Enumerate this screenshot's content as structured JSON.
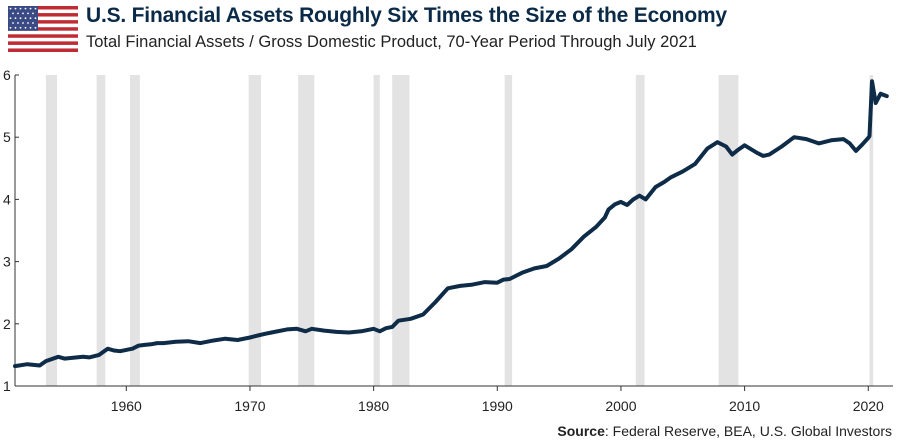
{
  "header": {
    "title": "U.S. Financial Assets Roughly Six Times the Size of the Economy",
    "subtitle": "Total Financial Assets / Gross Domestic Product, 70-Year Period Through July 2021"
  },
  "footer": {
    "source_label": "Source",
    "source_text": ": Federal Reserve, BEA, U.S. Global Investors"
  },
  "colors": {
    "line": "#0e2c48",
    "recession": "#e3e3e3",
    "flag_red": "#bf2b33",
    "flag_blue": "#3a4a85"
  },
  "chart_data": {
    "type": "line",
    "title": "",
    "xlabel": "",
    "ylabel": "",
    "xlim": [
      1951,
      2022
    ],
    "ylim": [
      1,
      6
    ],
    "x_ticks": [
      1960,
      1970,
      1980,
      1990,
      2000,
      2010,
      2020
    ],
    "y_ticks": [
      1,
      2,
      3,
      4,
      5,
      6
    ],
    "grid": false,
    "legend": "none",
    "recessions": [
      [
        1953.5,
        1954.4
      ],
      [
        1957.6,
        1958.3
      ],
      [
        1960.3,
        1961.1
      ],
      [
        1969.9,
        1970.9
      ],
      [
        1973.9,
        1975.2
      ],
      [
        1980.0,
        1980.5
      ],
      [
        1981.5,
        1982.9
      ],
      [
        1990.6,
        1991.2
      ],
      [
        2001.2,
        2001.9
      ],
      [
        2007.9,
        2009.5
      ],
      [
        2020.1,
        2020.4
      ]
    ],
    "series": [
      {
        "x": [
          1951.0,
          1952.0,
          1953.0,
          1953.5,
          1954.5,
          1955.0,
          1955.5,
          1956.5,
          1957.0,
          1957.8,
          1958.5,
          1959.0,
          1959.5,
          1960.0,
          1960.5,
          1961.0,
          1961.5,
          1962.0,
          1962.5,
          1963.0,
          1964.0,
          1965.0,
          1966.0,
          1967.0,
          1968.0,
          1969.0,
          1970.0,
          1970.8,
          1971.5,
          1972.0,
          1973.0,
          1973.8,
          1974.5,
          1975.0,
          1976.0,
          1977.0,
          1978.0,
          1979.0,
          1980.0,
          1980.5,
          1981.0,
          1981.5,
          1982.0,
          1983.0,
          1984.0,
          1985.0,
          1986.0,
          1987.0,
          1988.0,
          1989.0,
          1990.0,
          1990.5,
          1991.0,
          1992.0,
          1993.0,
          1994.0,
          1995.0,
          1996.0,
          1997.0,
          1998.0,
          1998.7,
          1999.0,
          1999.5,
          2000.0,
          2000.5,
          2001.0,
          2001.5,
          2002.0,
          2002.8,
          2003.5,
          2004.0,
          2005.0,
          2006.0,
          2007.0,
          2007.8,
          2008.5,
          2009.0,
          2009.5,
          2010.0,
          2011.0,
          2011.5,
          2012.0,
          2013.0,
          2014.0,
          2015.0,
          2016.0,
          2017.0,
          2018.0,
          2018.5,
          2019.0,
          2019.5,
          2020.0,
          2020.1,
          2020.3,
          2020.6,
          2021.0,
          2021.5
        ],
        "y": [
          1.32,
          1.35,
          1.33,
          1.4,
          1.47,
          1.44,
          1.45,
          1.47,
          1.46,
          1.5,
          1.6,
          1.57,
          1.56,
          1.58,
          1.6,
          1.65,
          1.66,
          1.67,
          1.69,
          1.69,
          1.71,
          1.72,
          1.69,
          1.73,
          1.76,
          1.74,
          1.78,
          1.82,
          1.85,
          1.87,
          1.91,
          1.92,
          1.88,
          1.92,
          1.89,
          1.87,
          1.86,
          1.88,
          1.92,
          1.88,
          1.93,
          1.95,
          2.05,
          2.08,
          2.15,
          2.35,
          2.57,
          2.61,
          2.63,
          2.67,
          2.66,
          2.71,
          2.72,
          2.82,
          2.89,
          2.93,
          3.05,
          3.2,
          3.4,
          3.56,
          3.71,
          3.84,
          3.92,
          3.96,
          3.91,
          4.0,
          4.06,
          4.0,
          4.2,
          4.28,
          4.35,
          4.45,
          4.57,
          4.82,
          4.92,
          4.85,
          4.72,
          4.8,
          4.87,
          4.75,
          4.7,
          4.72,
          4.85,
          5.0,
          4.97,
          4.9,
          4.95,
          4.97,
          4.9,
          4.78,
          4.88,
          4.99,
          5.02,
          5.9,
          5.55,
          5.7,
          5.66
        ]
      }
    ]
  }
}
